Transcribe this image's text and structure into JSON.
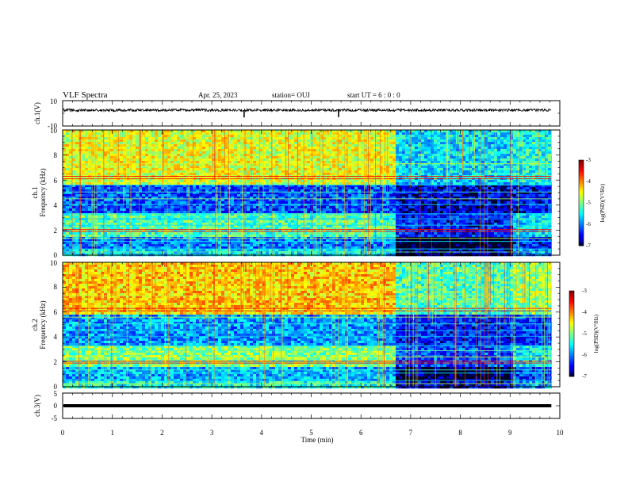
{
  "header": {
    "title": "VLF Spectra",
    "date": "Apr. 25, 2023",
    "station": "station= OUJ",
    "start_ut": "start UT =   6 : 0 : 0"
  },
  "chart_data": [
    {
      "type": "line",
      "panel": "ch1-waveform",
      "ylabel": "ch.1(V)",
      "ylim": [
        -10,
        10
      ],
      "y_ticks": [
        "10",
        "-10"
      ],
      "xlim": [
        0,
        10
      ],
      "baseline_v": 2.5,
      "noise_amplitude_v": 1.0,
      "spikes": [
        {
          "x": 3.65,
          "y": -3.2
        },
        {
          "x": 5.55,
          "y": -3.0
        }
      ],
      "data_end_x": 9.83
    },
    {
      "type": "heatmap",
      "panel": "ch1-spectrogram",
      "ylabel_line1": "ch.1",
      "ylabel_line2": "Frequency  (kHz)",
      "ylim": [
        0,
        10
      ],
      "y_ticks": [
        "0",
        "2",
        "4",
        "6",
        "8",
        "10"
      ],
      "xlim": [
        0,
        10
      ],
      "data_end_x": 9.83,
      "colorbar": {
        "label": "log(PSD)(V²/Hz)",
        "range": [
          -7,
          -3
        ],
        "ticks": [
          "-3",
          "-4",
          "-5",
          "-6",
          "-7"
        ]
      },
      "segments": [
        {
          "t0": 0,
          "t1": 6.65,
          "upper_level": -4.6,
          "mid_level": -6.2,
          "low_level": -5.2
        },
        {
          "t0": 6.65,
          "t1": 9.05,
          "upper_level": -5.6,
          "mid_level": -6.6,
          "low_level": -6.4
        },
        {
          "t0": 9.05,
          "t1": 9.83,
          "upper_level": -5.4,
          "mid_level": -6.5,
          "low_level": -5.6
        }
      ]
    },
    {
      "type": "heatmap",
      "panel": "ch2-spectrogram",
      "ylabel_line1": "ch.2",
      "ylabel_line2": "Frequency  (kHz)",
      "ylim": [
        0,
        10
      ],
      "y_ticks": [
        "0",
        "2",
        "4",
        "6",
        "8",
        "10"
      ],
      "xlim": [
        0,
        10
      ],
      "data_end_x": 9.83,
      "colorbar": {
        "label": "log(PSD)(V²/Hz)",
        "range": [
          -7,
          -3
        ],
        "ticks": [
          "-3",
          "-4",
          "-5",
          "-6",
          "-7"
        ]
      },
      "segments": [
        {
          "t0": 0,
          "t1": 6.65,
          "upper_level": -4.3,
          "mid_level": -5.9,
          "low_level": -5.0
        },
        {
          "t0": 6.65,
          "t1": 9.05,
          "upper_level": -5.2,
          "mid_level": -6.4,
          "low_level": -6.2
        },
        {
          "t0": 9.05,
          "t1": 9.83,
          "upper_level": -4.9,
          "mid_level": -6.3,
          "low_level": -5.5
        }
      ]
    },
    {
      "type": "line",
      "panel": "ch3-waveform",
      "ylabel": "ch.3(V)",
      "ylim": [
        -5,
        5
      ],
      "y_ticks": [
        "5",
        "0",
        "-5"
      ],
      "xlim": [
        0,
        10
      ],
      "xlabel": "Time  (min)",
      "x_ticks": [
        "0",
        "1",
        "2",
        "3",
        "4",
        "5",
        "6",
        "7",
        "8",
        "9",
        "10"
      ],
      "constant_value_v": 0,
      "data_end_x": 9.83
    }
  ]
}
